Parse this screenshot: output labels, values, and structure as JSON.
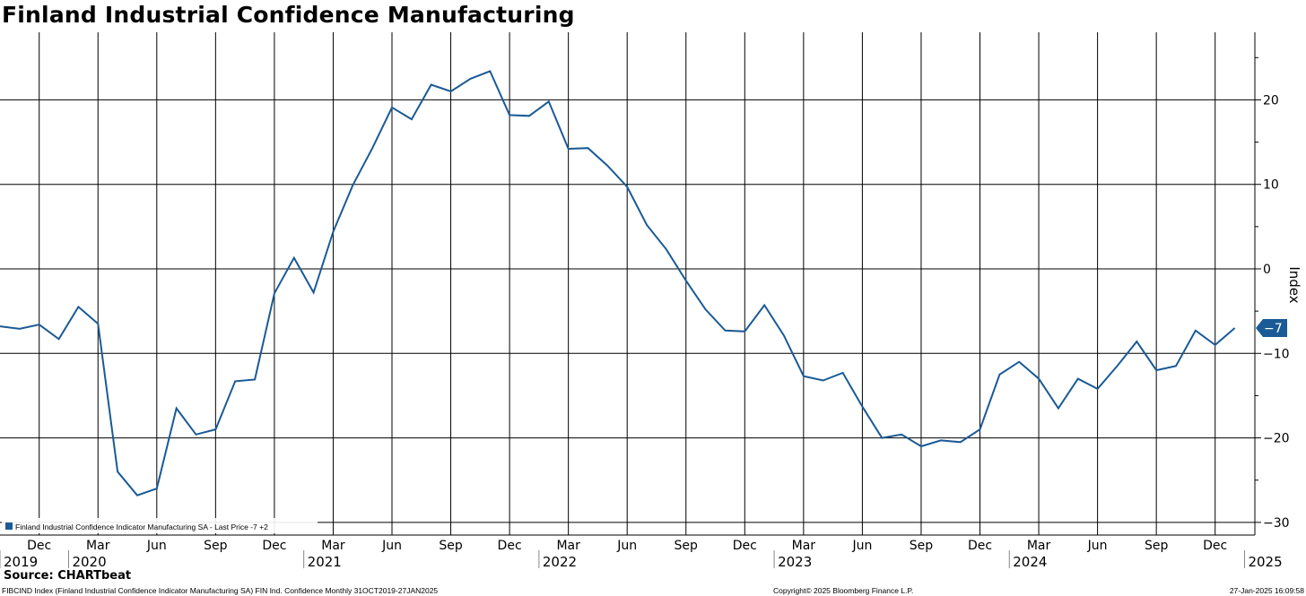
{
  "chart_data": {
    "type": "line",
    "title": "Finland Industrial Confidence Manufacturing",
    "ylabel": "Index",
    "ylim": [
      -31.5,
      28
    ],
    "yticks": [
      20,
      10,
      0,
      -10,
      -20,
      -30
    ],
    "grid": true,
    "legend_position": "bottom-left",
    "x_month_labels": [
      "Dec",
      "Mar",
      "Jun",
      "Sep",
      "Dec",
      "Mar",
      "Jun",
      "Sep",
      "Dec",
      "Mar",
      "Jun",
      "Sep",
      "Dec",
      "Mar",
      "Jun",
      "Sep",
      "Dec",
      "Mar",
      "Jun",
      "Sep",
      "Dec"
    ],
    "x_year_labels": [
      "2019",
      "2020",
      "2021",
      "2022",
      "2023",
      "2024",
      "2025"
    ],
    "series": [
      {
        "name": "Finland Industrial Confidence Indicator Manufacturing SA",
        "legend_text": "Finland Industrial Confidence Indicator Manufacturing SA - Last Price -7 +2",
        "color": "#1a5a96",
        "last_value_label": "-7",
        "x": [
          "2019-10",
          "2019-11",
          "2019-12",
          "2020-01",
          "2020-02",
          "2020-03",
          "2020-04",
          "2020-05",
          "2020-06",
          "2020-07",
          "2020-08",
          "2020-09",
          "2020-10",
          "2020-11",
          "2020-12",
          "2021-01",
          "2021-02",
          "2021-03",
          "2021-04",
          "2021-05",
          "2021-06",
          "2021-07",
          "2021-08",
          "2021-09",
          "2021-10",
          "2021-11",
          "2021-12",
          "2022-01",
          "2022-02",
          "2022-03",
          "2022-04",
          "2022-05",
          "2022-06",
          "2022-07",
          "2022-08",
          "2022-09",
          "2022-10",
          "2022-11",
          "2022-12",
          "2023-01",
          "2023-02",
          "2023-03",
          "2023-04",
          "2023-05",
          "2023-06",
          "2023-07",
          "2023-08",
          "2023-09",
          "2023-10",
          "2023-11",
          "2023-12",
          "2024-01",
          "2024-02",
          "2024-03",
          "2024-04",
          "2024-05",
          "2024-06",
          "2024-07",
          "2024-08",
          "2024-09",
          "2024-10",
          "2024-11",
          "2024-12",
          "2025-01"
        ],
        "values": [
          -6.8,
          -7.1,
          -6.6,
          -8.3,
          -4.5,
          -6.5,
          -24,
          -26.8,
          -26,
          -16.5,
          -19.6,
          -19,
          -13.3,
          -13.1,
          -2.9,
          1.3,
          -2.8,
          4.4,
          9.9,
          14.3,
          19.1,
          17.7,
          21.8,
          21,
          22.5,
          23.4,
          18.2,
          18.1,
          19.8,
          14.2,
          14.3,
          12.2,
          9.7,
          5.2,
          2.3,
          -1.4,
          -4.8,
          -7.3,
          -7.4,
          -4.3,
          -7.9,
          -12.7,
          -13.2,
          -12.3,
          -16.3,
          -20,
          -19.6,
          -21,
          -20.3,
          -20.5,
          -19,
          -12.5,
          -11,
          -13,
          -16.5,
          -13,
          -14.2,
          -11.5,
          -8.6,
          -12,
          -11.5,
          -7.3,
          -9,
          -7
        ]
      }
    ]
  },
  "source_text": "Source: CHARTbeat",
  "footer": {
    "left": "FIBCIND Index (Finland Industrial Confidence Indicator Manufacturing SA) FIN Ind. Confidence  Monthly 31OCT2019-27JAN2025",
    "center": "Copyright© 2025 Bloomberg Finance L.P.",
    "right": "27-Jan-2025 16:09:58"
  }
}
